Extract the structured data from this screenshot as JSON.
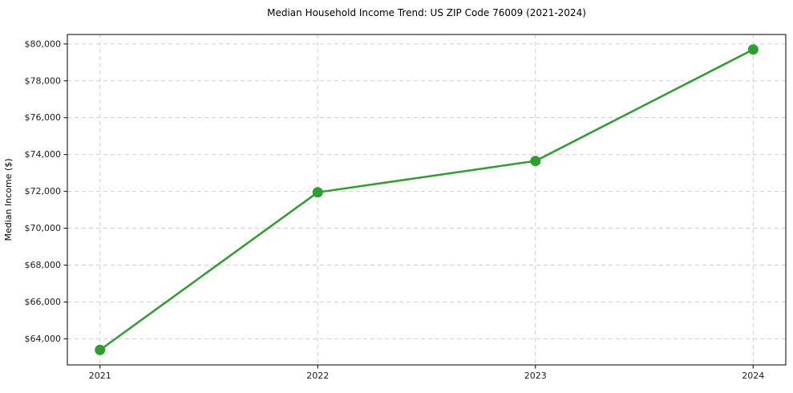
{
  "chart_data": {
    "type": "line",
    "title": "Median Household Income Trend: US ZIP Code 76009 (2021-2024)",
    "xlabel": "",
    "ylabel": "Median Income ($)",
    "x": [
      2021,
      2022,
      2023,
      2024
    ],
    "values": [
      63400,
      71950,
      73650,
      79700
    ],
    "xtick_labels": [
      "2021",
      "2022",
      "2023",
      "2024"
    ],
    "ytick_values": [
      64000,
      66000,
      68000,
      70000,
      72000,
      74000,
      76000,
      78000,
      80000
    ],
    "ytick_labels": [
      "$64,000",
      "$66,000",
      "$68,000",
      "$70,000",
      "$72,000",
      "$74,000",
      "$76,000",
      "$78,000",
      "$80,000"
    ],
    "xlim": [
      2020.85,
      2024.15
    ],
    "ylim": [
      62585,
      80515
    ],
    "grid": true,
    "grid_style": "dashed",
    "legend": "none",
    "line_color": "#2ca02c",
    "marker": "circle",
    "grid_color": "#cccccc",
    "background_color": "#ffffff",
    "text_color": "#1a1a1a"
  }
}
